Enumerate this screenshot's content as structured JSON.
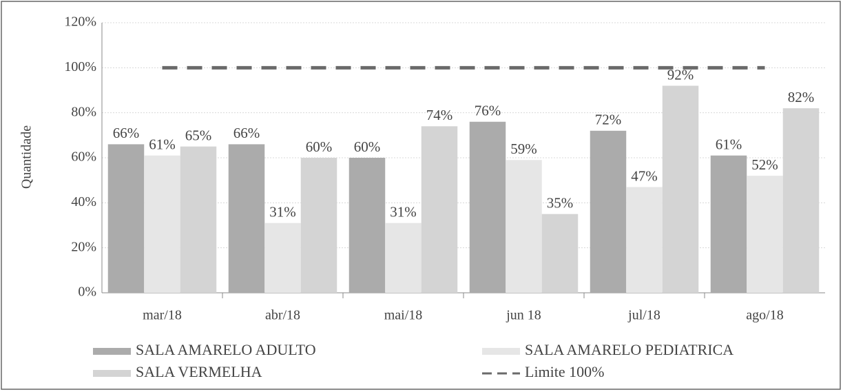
{
  "chart_data": {
    "type": "bar",
    "y_label": "Quantidade",
    "categories": [
      "mar/18",
      "abr/18",
      "mai/18",
      "jun 18",
      "jul/18",
      "ago/18"
    ],
    "series": [
      {
        "name": "SALA AMARELO ADULTO",
        "color": "#ababab",
        "values": [
          66,
          66,
          60,
          76,
          72,
          61
        ],
        "value_labels": [
          "66%",
          "66%",
          "60%",
          "76%",
          "72%",
          "61%"
        ]
      },
      {
        "name": "SALA AMARELO PEDIATRICA",
        "color": "#e6e6e6",
        "values": [
          61,
          31,
          31,
          59,
          47,
          52
        ],
        "value_labels": [
          "61%",
          "31%",
          "31%",
          "59%",
          "47%",
          "52%"
        ]
      },
      {
        "name": "SALA VERMELHA",
        "color": "#d4d4d4",
        "values": [
          65,
          60,
          74,
          35,
          92,
          82
        ],
        "value_labels": [
          "65%",
          "60%",
          "74%",
          "35%",
          "92%",
          "82%"
        ]
      },
      {
        "name": "Limite 100%",
        "type": "line",
        "color": "#6a6a6a",
        "values": [
          100,
          100,
          100,
          100,
          100,
          100
        ]
      }
    ],
    "ylim": [
      0,
      120
    ],
    "yticks": [
      {
        "value": 0,
        "label": "0%"
      },
      {
        "value": 20,
        "label": "20%"
      },
      {
        "value": 40,
        "label": "40%"
      },
      {
        "value": 60,
        "label": "60%"
      },
      {
        "value": 80,
        "label": "80%"
      },
      {
        "value": 100,
        "label": "100%"
      },
      {
        "value": 120,
        "label": "120%"
      }
    ],
    "grid": true
  }
}
